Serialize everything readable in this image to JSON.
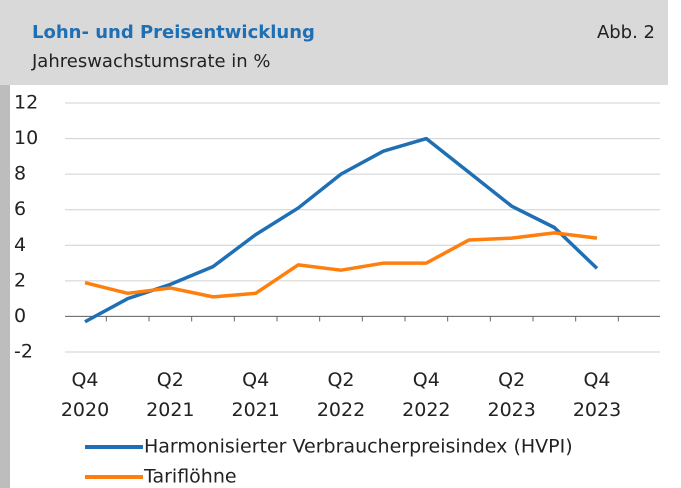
{
  "header": {
    "title": "Lohn- und Preisentwicklung",
    "figure_label": "Abb. 2",
    "subtitle": "Jahreswachstumsrate in %"
  },
  "chart_data": {
    "type": "line",
    "categories": [
      "Q4 2020",
      null,
      "Q2 2021",
      null,
      "Q4 2021",
      null,
      "Q2 2022",
      null,
      "Q4 2022",
      null,
      "Q2 2023",
      null,
      "Q4 2023"
    ],
    "series": [
      {
        "name": "Harmonisierter Verbraucherpreisindex (HVPI)",
        "color": "#1f6fb5",
        "values": [
          -0.3,
          1.0,
          1.8,
          2.8,
          4.6,
          6.1,
          8.0,
          9.3,
          10.0,
          8.1,
          6.2,
          5.0,
          2.7
        ]
      },
      {
        "name": "Tariflöhne",
        "color": "#ff7f0e",
        "values": [
          1.9,
          1.3,
          1.6,
          1.1,
          1.3,
          2.9,
          2.6,
          3.0,
          3.0,
          4.3,
          4.4,
          4.7,
          4.4
        ]
      }
    ],
    "ylim": [
      -2,
      12
    ],
    "yticks": [
      -2,
      0,
      2,
      4,
      6,
      8,
      10,
      12
    ],
    "grid": true
  }
}
